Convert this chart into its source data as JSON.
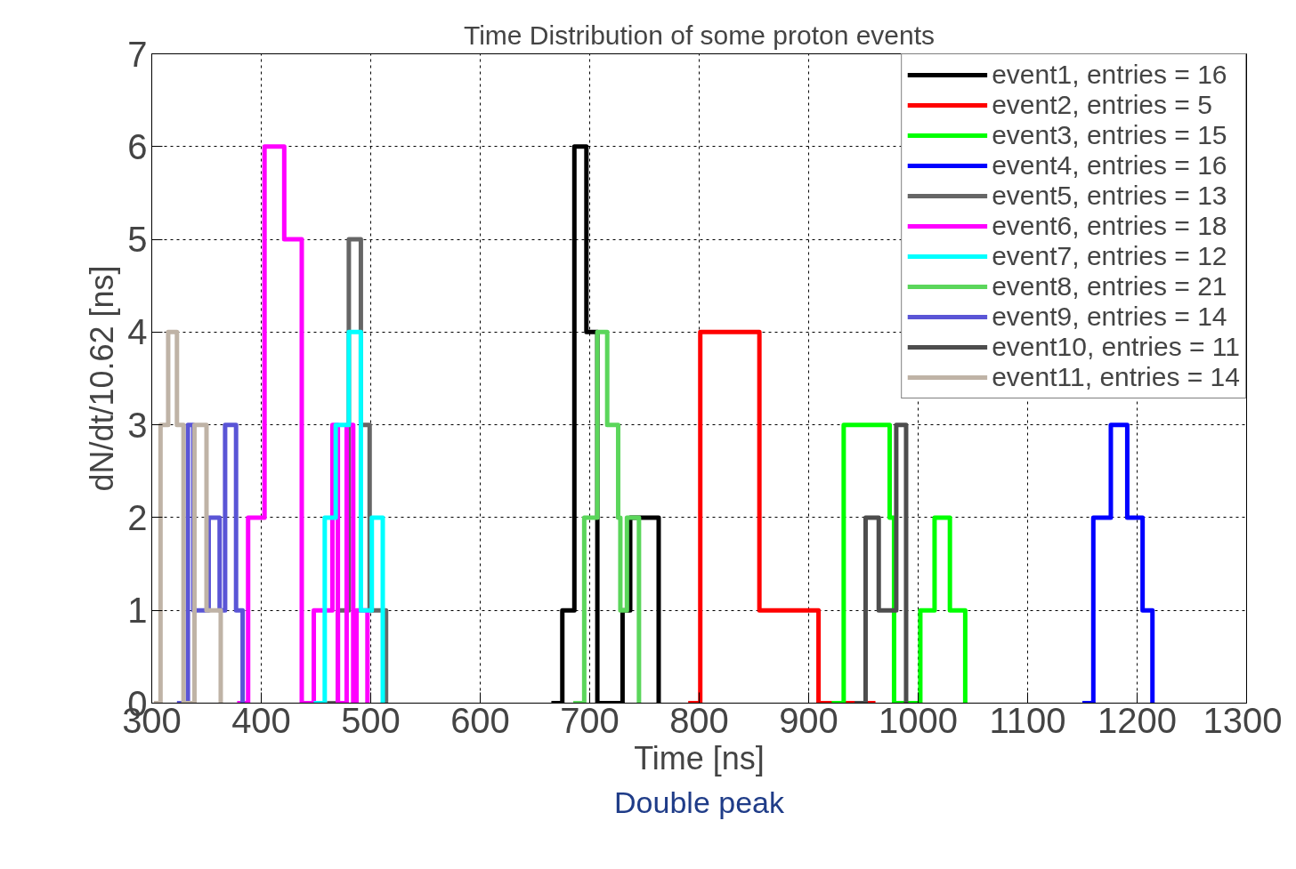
{
  "chart_data": {
    "type": "step",
    "title": "Time Distribution of some proton events",
    "xlabel": "Time [ns]",
    "ylabel": "dN/dt/10.62 [ns]",
    "xlim": [
      300,
      1300
    ],
    "ylim": [
      0,
      7
    ],
    "xticks": [
      300,
      400,
      500,
      600,
      700,
      800,
      900,
      1000,
      1100,
      1200,
      1300
    ],
    "yticks": [
      0,
      1,
      2,
      3,
      4,
      5,
      6,
      7
    ],
    "grid": true,
    "legend": "top right",
    "marker": "none",
    "line_style": "solid",
    "annotations": [
      "Double peak"
    ],
    "series": [
      {
        "name": "event1, entries = 16",
        "color": "#000000",
        "x": [
          665,
          675,
          686,
          697,
          707,
          730,
          737,
          763
        ],
        "values": [
          0,
          1,
          6,
          4,
          0,
          1,
          2,
          0
        ]
      },
      {
        "name": "event2, entries = 5",
        "color": "#ff0000",
        "x": [
          790,
          801,
          855,
          909,
          961
        ],
        "values": [
          0,
          4,
          1,
          0,
          0
        ]
      },
      {
        "name": "event3, entries = 15",
        "color": "#00ff00",
        "x": [
          921,
          932,
          974,
          978,
          1002,
          1015,
          1029,
          1043
        ],
        "values": [
          0,
          3,
          2,
          0,
          1,
          2,
          1,
          0
        ]
      },
      {
        "name": "event4, entries = 16",
        "color": "#0000ff",
        "x": [
          1150,
          1160,
          1176,
          1191,
          1205,
          1214
        ],
        "values": [
          0,
          2,
          3,
          2,
          1,
          0
        ]
      },
      {
        "name": "event5, entries = 13",
        "color": "#666666",
        "x": [
          460,
          470,
          480,
          491,
          499,
          514
        ],
        "values": [
          0,
          1,
          5,
          3,
          1,
          0
        ]
      },
      {
        "name": "event6, entries = 18",
        "color": "#ff00ff",
        "x": [
          378,
          388,
          403,
          421,
          437,
          448,
          465,
          470,
          478,
          484,
          487,
          497
        ],
        "values": [
          0,
          2,
          6,
          5,
          0,
          1,
          3,
          0,
          3,
          0,
          1,
          0
        ]
      },
      {
        "name": "event7, entries = 12",
        "color": "#00ffff",
        "x": [
          448,
          458,
          468,
          480,
          491,
          501,
          511
        ],
        "values": [
          0,
          2,
          3,
          4,
          1,
          2,
          0
        ]
      },
      {
        "name": "event8, entries = 21",
        "color": "#5bd65b",
        "x": [
          685,
          695,
          707,
          716,
          726,
          728,
          734,
          745
        ],
        "values": [
          0,
          2,
          4,
          3,
          2,
          1,
          2,
          0
        ]
      },
      {
        "name": "event9, entries = 14",
        "color": "#5a55d6",
        "x": [
          323,
          333,
          338,
          352,
          362,
          367,
          377,
          383
        ],
        "values": [
          0,
          3,
          1,
          2,
          1,
          3,
          1,
          0
        ]
      },
      {
        "name": "event10, entries = 11",
        "color": "#4d4d4d",
        "x": [
          942,
          952,
          964,
          980,
          989
        ],
        "values": [
          0,
          2,
          1,
          3,
          0
        ]
      },
      {
        "name": "event11, entries = 14",
        "color": "#bfb3a6",
        "x": [
          302,
          308,
          315,
          323,
          329,
          339,
          350,
          363
        ],
        "values": [
          0,
          3,
          4,
          3,
          0,
          3,
          1,
          0
        ]
      }
    ]
  }
}
